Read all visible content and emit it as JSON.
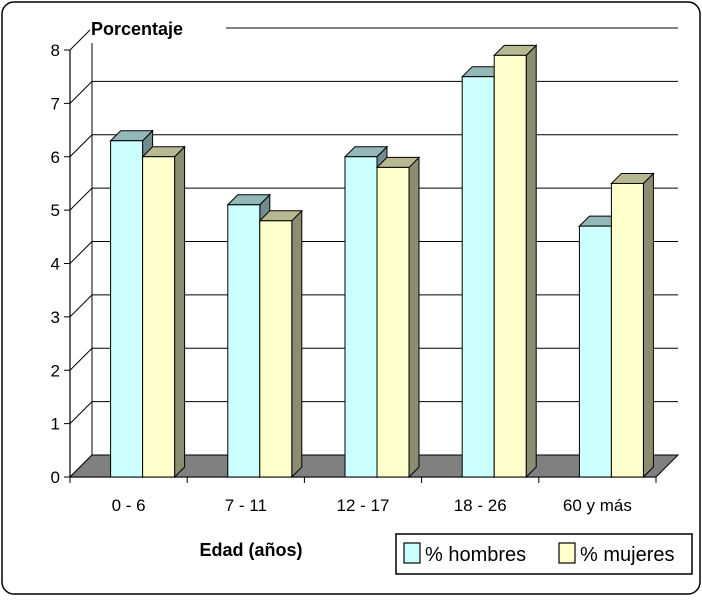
{
  "chart_data": {
    "type": "bar",
    "ylabel": "Porcentaje",
    "xlabel": "Edad (años)",
    "categories": [
      "0 - 6",
      "7 - 11",
      "12 - 17",
      "18 - 26",
      "60 y más"
    ],
    "series": [
      {
        "name": "% hombres",
        "values": [
          6.3,
          5.1,
          6.0,
          7.5,
          4.7
        ],
        "color": "#ccffff"
      },
      {
        "name": "% mujeres",
        "values": [
          6.0,
          4.8,
          5.8,
          7.9,
          5.5
        ],
        "color": "#ffffcc"
      }
    ],
    "ylim": [
      0,
      8
    ],
    "yticks": [
      "0",
      "1",
      "2",
      "3",
      "4",
      "5",
      "6",
      "7",
      "8"
    ],
    "grid": true,
    "legend_position": "bottom-right",
    "floor_color": "#808080"
  }
}
